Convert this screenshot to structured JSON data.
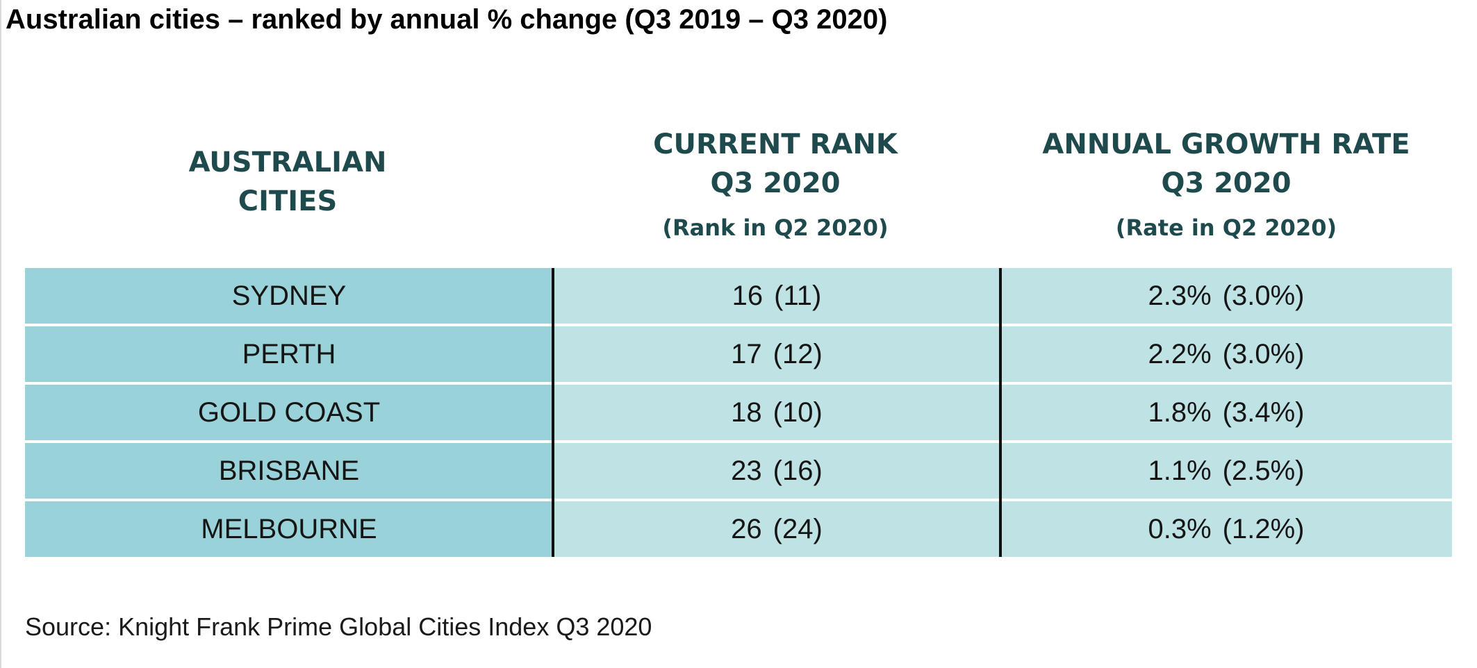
{
  "title": "Australian cities – ranked by annual % change (Q3 2019 – Q3 2020)",
  "headers": {
    "city": [
      "AUSTRALIAN",
      "CITIES"
    ],
    "rank": [
      "CURRENT RANK",
      "Q3 2020",
      "(Rank in Q2 2020)"
    ],
    "rate": [
      "ANNUAL GROWTH RATE",
      "Q3 2020",
      "(Rate in Q2 2020)"
    ]
  },
  "source": "Source: Knight Frank Prime Global Cities Index Q3 2020",
  "chart_data": {
    "type": "table",
    "title": "Australian cities – ranked by annual % change (Q3 2019 – Q3 2020)",
    "columns": [
      "AUSTRALIAN CITIES",
      "CURRENT RANK Q3 2020 (Rank in Q2 2020)",
      "ANNUAL GROWTH RATE Q3 2020 (Rate in Q2 2020)"
    ],
    "rows": [
      {
        "city": "SYDNEY",
        "rank": "16",
        "prev_rank": "(11)",
        "rate": "2.3%",
        "prev_rate": "(3.0%)"
      },
      {
        "city": "PERTH",
        "rank": "17",
        "prev_rank": "(12)",
        "rate": "2.2%",
        "prev_rate": "(3.0%)"
      },
      {
        "city": "GOLD COAST",
        "rank": "18",
        "prev_rank": "(10)",
        "rate": "1.8%",
        "prev_rate": "(3.4%)"
      },
      {
        "city": "BRISBANE",
        "rank": "23",
        "prev_rank": "(16)",
        "rate": "1.1%",
        "prev_rate": "(2.5%)"
      },
      {
        "city": "MELBOURNE",
        "rank": "26",
        "prev_rank": "(24)",
        "rate": "0.3%",
        "prev_rate": "(1.2%)"
      }
    ]
  },
  "colors": {
    "city_cell": "#99d2d9",
    "value_cell": "#bfe3e5",
    "header_text": "#1f4a4d",
    "divider": "#111111"
  }
}
